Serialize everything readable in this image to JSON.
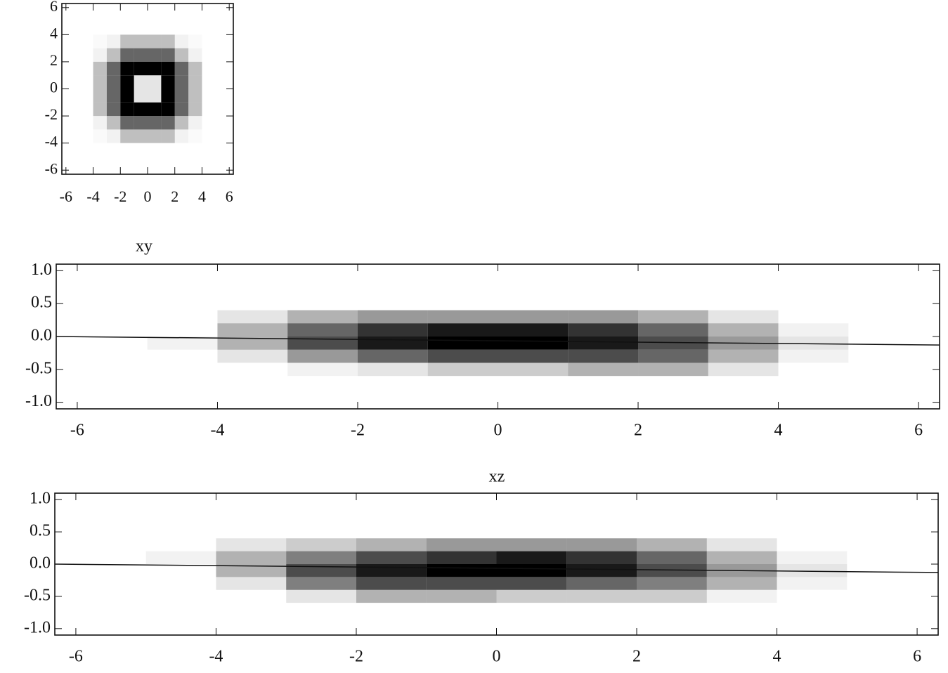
{
  "chart_data": [
    {
      "type": "heatmap",
      "color": "#000000",
      "xlim": [
        -6.3,
        6.3
      ],
      "ylim": [
        -6.3,
        6.3
      ],
      "xticks": [
        -6,
        -4,
        -2,
        0,
        2,
        4,
        6
      ],
      "yticks": [
        6,
        4,
        2,
        0,
        -2,
        -4,
        -6
      ],
      "xbins": [
        -4,
        -3,
        -2,
        -1,
        0,
        1,
        2,
        3,
        4
      ],
      "ybins": [
        4,
        3,
        2,
        1,
        0,
        -1,
        -2,
        -3,
        -4
      ],
      "z": [
        [
          0.02,
          0.05,
          0.25,
          0.25,
          0.25,
          0.25,
          0.05,
          0.02
        ],
        [
          0.05,
          0.25,
          0.6,
          0.6,
          0.6,
          0.6,
          0.25,
          0.05
        ],
        [
          0.25,
          0.6,
          1,
          1,
          1,
          1,
          0.6,
          0.25
        ],
        [
          0.25,
          0.6,
          1,
          0.1,
          0.1,
          1,
          0.6,
          0.25
        ],
        [
          0.25,
          0.6,
          1,
          0.1,
          0.1,
          1,
          0.6,
          0.25
        ],
        [
          0.25,
          0.6,
          1,
          1,
          1,
          1,
          0.6,
          0.25
        ],
        [
          0.05,
          0.25,
          0.6,
          0.6,
          0.6,
          0.6,
          0.25,
          0.05
        ],
        [
          0.02,
          0.05,
          0.25,
          0.25,
          0.25,
          0.25,
          0.05,
          0.02
        ]
      ]
    },
    {
      "type": "heatmap",
      "title": "xy",
      "color": "#000000",
      "xlim": [
        -6.3,
        6.3
      ],
      "ylim": [
        -1.1,
        1.1
      ],
      "xticks": [
        -6,
        -4,
        -2,
        0,
        2,
        4,
        6
      ],
      "yticks": [
        {
          "value": 1,
          "label": "1.0"
        },
        0.5,
        {
          "value": 0,
          "label": "0.0"
        },
        -0.5,
        {
          "value": -1,
          "label": "-1.0"
        }
      ],
      "xbins": [
        -5,
        -4,
        -3,
        -2,
        -1,
        0,
        1,
        2,
        3,
        4,
        5
      ],
      "ybins": [
        0.4,
        0.2,
        0,
        -0.2,
        -0.4,
        -0.6
      ],
      "z": [
        [
          0,
          0.1,
          0.3,
          0.4,
          0.4,
          0.4,
          0.4,
          0.3,
          0.1,
          0
        ],
        [
          0,
          0.3,
          0.6,
          0.8,
          0.9,
          0.9,
          0.8,
          0.6,
          0.3,
          0.05
        ],
        [
          0.05,
          0.3,
          0.7,
          0.9,
          1,
          1,
          0.9,
          0.7,
          0.4,
          0.1
        ],
        [
          0,
          0.1,
          0.4,
          0.6,
          0.7,
          0.7,
          0.7,
          0.6,
          0.3,
          0.05
        ],
        [
          0,
          0,
          0.05,
          0.1,
          0.2,
          0.2,
          0.3,
          0.3,
          0.1,
          0
        ]
      ],
      "line": {
        "x": [
          -6.3,
          6.3
        ],
        "y": [
          0,
          -0.13
        ]
      }
    },
    {
      "type": "heatmap",
      "title": "xz",
      "color": "#000000",
      "xlim": [
        -6.3,
        6.3
      ],
      "ylim": [
        -1.1,
        1.1
      ],
      "xticks": [
        -6,
        -4,
        -2,
        0,
        2,
        4,
        6
      ],
      "yticks": [
        {
          "value": 1,
          "label": "1.0"
        },
        0.5,
        {
          "value": 0,
          "label": "0.0"
        },
        -0.5,
        {
          "value": -1,
          "label": "-1.0"
        }
      ],
      "xbins": [
        -5,
        -4,
        -3,
        -2,
        -1,
        0,
        1,
        2,
        3,
        4,
        5
      ],
      "ybins": [
        0.4,
        0.2,
        0,
        -0.2,
        -0.4,
        -0.6
      ],
      "z": [
        [
          0,
          0.1,
          0.2,
          0.3,
          0.4,
          0.4,
          0.4,
          0.3,
          0.1,
          0
        ],
        [
          0.05,
          0.3,
          0.5,
          0.7,
          0.8,
          0.9,
          0.8,
          0.6,
          0.3,
          0.05
        ],
        [
          0,
          0.3,
          0.7,
          0.9,
          1,
          1,
          0.9,
          0.7,
          0.4,
          0.1
        ],
        [
          0,
          0.1,
          0.5,
          0.7,
          0.7,
          0.7,
          0.6,
          0.5,
          0.3,
          0.05
        ],
        [
          0,
          0,
          0.1,
          0.3,
          0.3,
          0.2,
          0.2,
          0.2,
          0.05,
          0
        ]
      ],
      "line": {
        "x": [
          -6.3,
          6.3
        ],
        "y": [
          0,
          -0.13
        ]
      }
    }
  ]
}
